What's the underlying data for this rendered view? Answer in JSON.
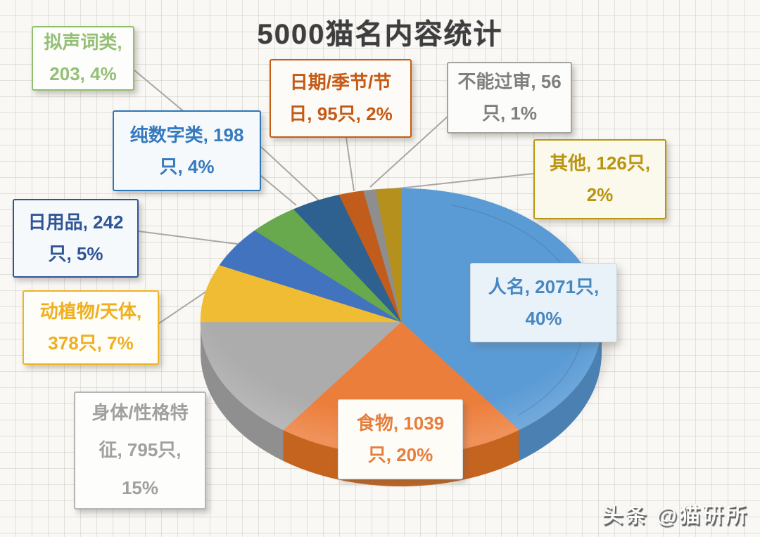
{
  "title": "5000猫名内容统计",
  "watermark": "头条 @猫研所",
  "chart_data": {
    "type": "pie",
    "title": "5000猫名内容统计",
    "style": "3d-pie-with-callouts",
    "unit": "只",
    "legend_position": "callout-boxes",
    "clockwise_from_top": true,
    "series": [
      {
        "id": "renming",
        "name": "人名",
        "count": 2071,
        "percent": 40,
        "color": "#5B9BD5",
        "side_color": "#4A80B2",
        "label_color": "#4787C1",
        "border_color": "",
        "box_bg": "#EAF2F9",
        "label_lines": [
          "人名, 2071只,",
          "40%"
        ]
      },
      {
        "id": "shiwu",
        "name": "食物",
        "count": 1039,
        "percent": 20,
        "color": "#EC7E3C",
        "side_color": "#C4641F",
        "label_color": "#E67D3C",
        "border_color": "",
        "box_bg": "#FEFCF7",
        "label_lines": [
          "食物, 1039",
          "只, 20%"
        ]
      },
      {
        "id": "shenti",
        "name": "身体/性格特征",
        "count": 795,
        "percent": 15,
        "color": "#ACACAC",
        "side_color": "#8F8F8F",
        "label_color": "#A0A0A0",
        "border_color": "#B5B5B5",
        "box_bg": "#FDFDFB",
        "label_lines": [
          "身体/性格特",
          "征, 795只,",
          "15%"
        ]
      },
      {
        "id": "dongzhiwu",
        "name": "动植物/天体",
        "count": 378,
        "percent": 7,
        "color": "#F0BC33",
        "side_color": "#D0A01A",
        "label_color": "#F0AF1E",
        "border_color": "#EFB41E",
        "box_bg": "#FEFDF8",
        "label_lines": [
          "动植物/天体,",
          "378只, 7%"
        ]
      },
      {
        "id": "riyongpin",
        "name": "日用品",
        "count": 242,
        "percent": 5,
        "color": "#4273BF",
        "side_color": "#33599A",
        "label_color": "#2F5597",
        "border_color": "#2F5597",
        "box_bg": "#F6F9FC",
        "label_lines": [
          "日用品, 242",
          "只, 5%"
        ]
      },
      {
        "id": "nishengci",
        "name": "拟声词类",
        "count": 203,
        "percent": 4,
        "color": "#67A94C",
        "side_color": "#4F8A38",
        "label_color": "#94BF75",
        "border_color": "#8FBE6F",
        "box_bg": "#FDFEFB",
        "label_lines": [
          "拟声词类,",
          "203, 4%"
        ]
      },
      {
        "id": "chunshuzi",
        "name": "纯数字类",
        "count": 198,
        "percent": 4,
        "color": "#2E6190",
        "side_color": "#234C72",
        "label_color": "#3579BE",
        "border_color": "#2E75B6",
        "box_bg": "#F5F9FC",
        "label_lines": [
          "纯数字类, 198",
          "只, 4%"
        ]
      },
      {
        "id": "riqi",
        "name": "日期/季节/节日",
        "count": 95,
        "percent": 2,
        "color": "#C25C1C",
        "side_color": "#9A4812",
        "label_color": "#C45A15",
        "border_color": "#C55A11",
        "box_bg": "#FDFBF7",
        "label_lines": [
          "日期/季节/节",
          "日, 95只, 2%"
        ]
      },
      {
        "id": "buneng",
        "name": "不能过审",
        "count": 56,
        "percent": 1,
        "color": "#8E8E8E",
        "side_color": "#747474",
        "label_color": "#7F7F7F",
        "border_color": "#A3A3A3",
        "box_bg": "#FCFCFA",
        "label_lines": [
          "不能过审, 56",
          "只, 1%"
        ]
      },
      {
        "id": "qita",
        "name": "其他",
        "count": 126,
        "percent": 2,
        "color": "#B6901D",
        "side_color": "#947414",
        "label_color": "#B9940F",
        "border_color": "#B8960C",
        "box_bg": "#FBF8EC",
        "label_lines": [
          "其他, 126只,",
          "2%"
        ]
      }
    ]
  }
}
